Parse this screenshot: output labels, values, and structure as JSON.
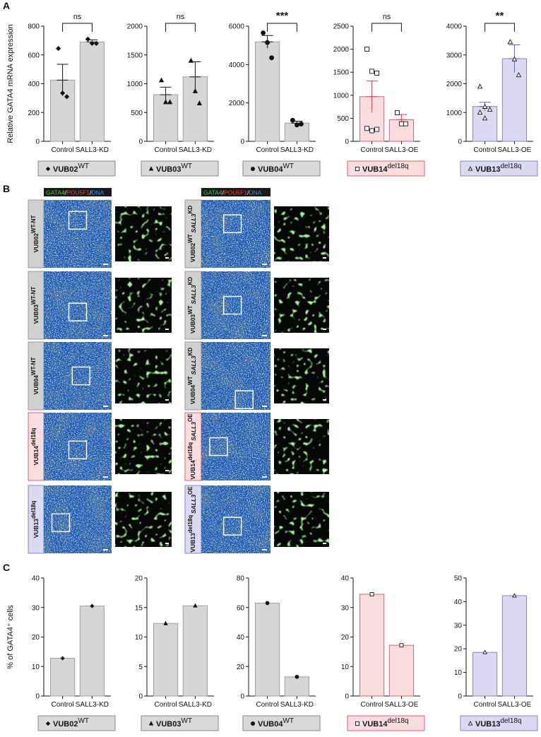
{
  "panel_labels": [
    "A",
    "B",
    "C"
  ],
  "chart_data": [
    {
      "type": "bar",
      "ylabel": "Relative GATA4 mRNA expression",
      "categories": [
        "Control",
        "SALL3-KD"
      ],
      "values": [
        425,
        690
      ],
      "errors": [
        110,
        15
      ],
      "points": [
        [
          645,
          335,
          310
        ],
        [
          710,
          680,
          680
        ]
      ],
      "significance": "ns",
      "marker": "diamond",
      "filled": true,
      "color": "#d6d6d6",
      "edge": "#a0a0a0",
      "error_color": "#111111",
      "group": "VUB02",
      "group_sup": "WT",
      "box_color": "#d9d9d9",
      "box_edge": "#888888",
      "ylim": [
        0,
        800
      ],
      "yticks": [
        0,
        200,
        400,
        600,
        800
      ]
    },
    {
      "type": "bar",
      "categories": [
        "Control",
        "SALL3-KD"
      ],
      "values": [
        810,
        1120
      ],
      "errors": [
        130,
        260
      ],
      "points": [
        [
          1060,
          680,
          680
        ],
        [
          1400,
          870,
          660
        ]
      ],
      "significance": "ns",
      "marker": "triangle",
      "filled": true,
      "color": "#d6d6d6",
      "edge": "#a0a0a0",
      "error_color": "#111111",
      "group": "VUB03",
      "group_sup": "WT",
      "box_color": "#d9d9d9",
      "box_edge": "#888888",
      "ylim": [
        0,
        2000
      ],
      "yticks": [
        0,
        500,
        1000,
        1500,
        2000
      ]
    },
    {
      "type": "bar",
      "categories": [
        "Control",
        "SALL3-KD"
      ],
      "values": [
        5180,
        950
      ],
      "errors": [
        330,
        100
      ],
      "points": [
        [
          5650,
          5150,
          4350
        ],
        [
          1100,
          850,
          900
        ]
      ],
      "significance": "***",
      "marker": "circle",
      "filled": true,
      "color": "#d6d6d6",
      "edge": "#a0a0a0",
      "error_color": "#111111",
      "group": "VUB04",
      "group_sup": "WT",
      "box_color": "#d9d9d9",
      "box_edge": "#888888",
      "ylim": [
        0,
        6000
      ],
      "yticks": [
        0,
        2000,
        4000,
        6000
      ]
    },
    {
      "type": "bar",
      "categories": [
        "Control",
        "SALL3-OE"
      ],
      "values": [
        970,
        470
      ],
      "errors": [
        340,
        110
      ],
      "points": [
        [
          2000,
          1520,
          1480,
          280,
          230,
          260
        ],
        [
          620,
          380,
          380
        ]
      ],
      "significance": "ns",
      "marker": "square",
      "filled": false,
      "color": "#fbdde0",
      "edge": "#e0606a",
      "error_color": "#e0404c",
      "group": "VUB14",
      "group_sup": "del18q",
      "box_color": "#fbdde0",
      "box_edge": "#e0606a",
      "ylim": [
        0,
        2500
      ],
      "yticks": [
        0,
        500,
        1000,
        1500,
        2000,
        2500
      ]
    },
    {
      "type": "bar",
      "categories": [
        "Control",
        "SALL3-OE"
      ],
      "values": [
        1210,
        2870
      ],
      "errors": [
        150,
        480
      ],
      "points": [
        [
          1900,
          1200,
          1100,
          1000,
          800
        ],
        [
          3450,
          2850,
          2300
        ]
      ],
      "significance": "**",
      "marker": "triangle",
      "filled": false,
      "color": "#dcdaf2",
      "edge": "#8585c8",
      "error_color": "#6060c0",
      "group": "VUB13",
      "group_sup": "del18q",
      "box_color": "#dcdaf2",
      "box_edge": "#8585c8",
      "ylim": [
        0,
        4000
      ],
      "yticks": [
        0,
        1000,
        2000,
        3000,
        4000
      ]
    },
    {
      "type": "bar",
      "ylabel": "% of GATA4⁺ cells",
      "categories": [
        "Control",
        "SALL3-KD"
      ],
      "values": [
        12.8,
        30.5
      ],
      "marker": "diamond",
      "filled": true,
      "color": "#d6d6d6",
      "edge": "#a0a0a0",
      "group": "VUB02",
      "group_sup": "WT",
      "box_color": "#d9d9d9",
      "box_edge": "#888888",
      "ylim": [
        0,
        40
      ],
      "yticks": [
        0,
        10,
        20,
        30,
        40
      ]
    },
    {
      "type": "bar",
      "categories": [
        "Control",
        "SALL3-KD"
      ],
      "values": [
        12.3,
        15.3
      ],
      "marker": "triangle",
      "filled": true,
      "color": "#d6d6d6",
      "edge": "#a0a0a0",
      "group": "VUB03",
      "group_sup": "WT",
      "box_color": "#d9d9d9",
      "box_edge": "#888888",
      "ylim": [
        0,
        20
      ],
      "yticks": [
        0,
        5,
        10,
        15,
        20
      ]
    },
    {
      "type": "bar",
      "categories": [
        "Control",
        "SALL3-KD"
      ],
      "values": [
        63,
        13
      ],
      "marker": "circle",
      "filled": true,
      "color": "#d6d6d6",
      "edge": "#a0a0a0",
      "group": "VUB04",
      "group_sup": "WT",
      "box_color": "#d9d9d9",
      "box_edge": "#888888",
      "ylim": [
        0,
        80
      ],
      "yticks": [
        0,
        20,
        40,
        60,
        80
      ]
    },
    {
      "type": "bar",
      "categories": [
        "Control",
        "SALL3-OE"
      ],
      "values": [
        34.5,
        17.2
      ],
      "marker": "square",
      "filled": false,
      "color": "#fbdde0",
      "edge": "#e0606a",
      "group": "VUB14",
      "group_sup": "del18q",
      "box_color": "#fbdde0",
      "box_edge": "#e0606a",
      "ylim": [
        0,
        40
      ],
      "yticks": [
        0,
        10,
        20,
        30,
        40
      ]
    },
    {
      "type": "bar",
      "categories": [
        "Control",
        "SALL3-OE"
      ],
      "values": [
        18.5,
        42.5
      ],
      "marker": "triangle",
      "filled": false,
      "color": "#dcdaf2",
      "edge": "#8585c8",
      "group": "VUB13",
      "group_sup": "del18q",
      "box_color": "#dcdaf2",
      "box_edge": "#8585c8",
      "ylim": [
        0,
        50
      ],
      "yticks": [
        0,
        10,
        20,
        30,
        40,
        50
      ]
    }
  ],
  "micrographs": {
    "channels": [
      {
        "text": "GATA4",
        "color": "#3fd03f"
      },
      {
        "text": "/",
        "color": "#ffffff"
      },
      {
        "text": "POU5F1",
        "color": "#ff3b3b"
      },
      {
        "text": "/",
        "color": "#ffffff"
      },
      {
        "text": "DNA",
        "color": "#3d8fe6"
      }
    ],
    "left": [
      {
        "line": "VUB02",
        "sup": "WT-NT",
        "fill": "#d0d0d0",
        "edge": "#999999"
      },
      {
        "line": "VUB03",
        "sup": "WT-NT",
        "fill": "#d0d0d0",
        "edge": "#999999"
      },
      {
        "line": "VUB04",
        "sup": "WT-NT",
        "fill": "#d0d0d0",
        "edge": "#999999"
      },
      {
        "line": "VUB14",
        "sup": "del18q",
        "fill": "#fbdde0",
        "edge": "#e0606a"
      },
      {
        "line": "VUB13",
        "sup": "del18q",
        "fill": "#dcdaf2",
        "edge": "#8585c8"
      }
    ],
    "right": [
      {
        "line": "VUB02",
        "sup": "WT",
        "gene": "SALL3",
        "gene_sup": "KD",
        "fill": "#d0d0d0",
        "edge": "#999999"
      },
      {
        "line": "VUB03",
        "sup": "WT",
        "gene": "SALL3",
        "gene_sup": "KD",
        "fill": "#d0d0d0",
        "edge": "#999999"
      },
      {
        "line": "VUB04",
        "sup": "WT",
        "gene": "SALL3",
        "gene_sup": "KD",
        "fill": "#d0d0d0",
        "edge": "#999999"
      },
      {
        "line": "VUB14",
        "sup": "del18q",
        "gene": "SALL3",
        "gene_sup": "OE",
        "fill": "#fbdde0",
        "edge": "#e0606a"
      },
      {
        "line": "VUB13",
        "sup": "del18q",
        "gene": "SALL3",
        "gene_sup": "OE",
        "fill": "#dcdaf2",
        "edge": "#8585c8"
      }
    ]
  }
}
